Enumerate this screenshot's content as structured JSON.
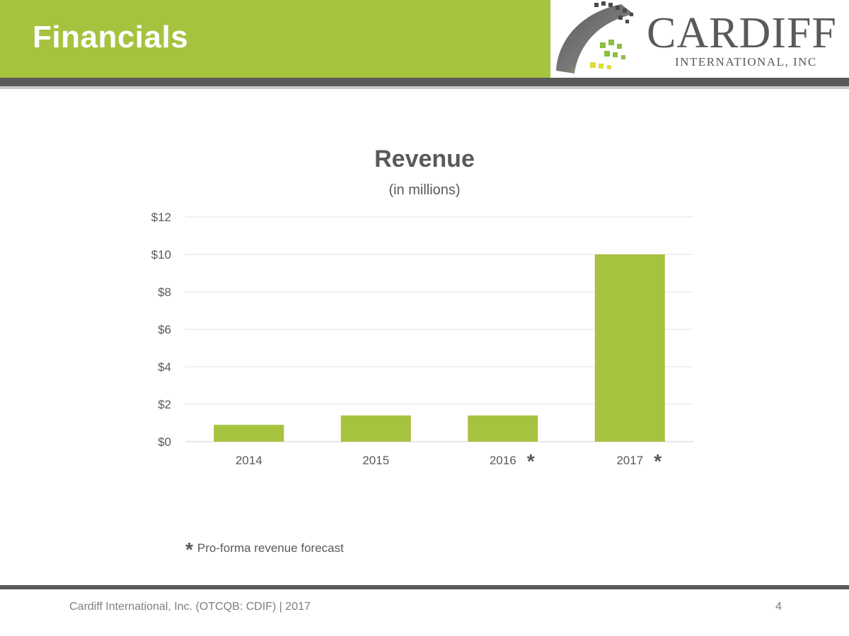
{
  "header": {
    "title": "Financials",
    "logo": {
      "name_main": "CARDIFF",
      "name_sub": "INTERNATIONAL, INC"
    }
  },
  "colors": {
    "accent_green": "#a6c33f",
    "bar_green": "#a6c33f",
    "dark_gray": "#595959"
  },
  "chart_data": {
    "type": "bar",
    "title": "Revenue",
    "subtitle": "(in millions)",
    "categories": [
      "2014",
      "2015",
      "2016",
      "2017"
    ],
    "category_marks": [
      "",
      "",
      "*",
      "*"
    ],
    "values": [
      0.9,
      1.4,
      1.4,
      10
    ],
    "ylim": [
      0,
      12
    ],
    "yticks": [
      0,
      2,
      4,
      6,
      8,
      10,
      12
    ],
    "ytick_labels": [
      "$0",
      "$2",
      "$4",
      "$6",
      "$8",
      "$10",
      "$12"
    ],
    "grid": true,
    "xlabel": "",
    "ylabel": ""
  },
  "footnote": {
    "mark": "*",
    "text": "Pro-forma revenue forecast"
  },
  "footer": {
    "left": "Cardiff International, Inc. (OTCQB: CDIF) | 2017",
    "page_number": "4"
  }
}
